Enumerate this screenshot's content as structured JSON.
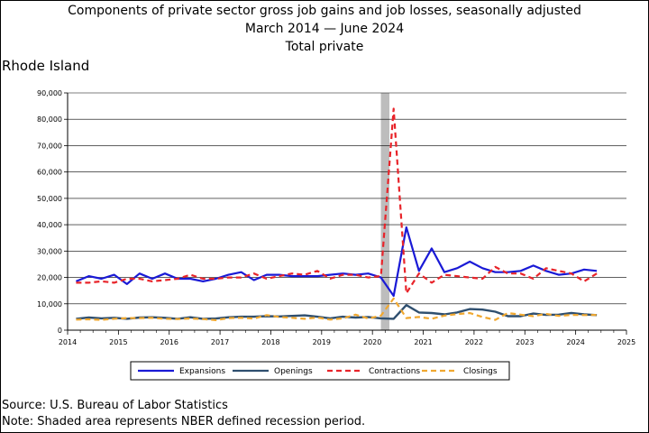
{
  "title_line1": "Components of private sector gross job gains and job losses, seasonally adjusted",
  "title_line2_start": "March 2014",
  "title_line2_end": "June 2024",
  "title_line3": "Total private",
  "region": "Rhode Island",
  "source": "Source: U.S. Bureau of Labor Statistics",
  "note": "Note: Shaded area represents NBER defined recession period.",
  "colors": {
    "expansions": "#1a1ad6",
    "openings": "#2f4f6f",
    "contractions": "#e8242a",
    "closings": "#f0a830",
    "recession": "#bdbdbd"
  },
  "chart_data": {
    "type": "line",
    "ylim": [
      0,
      90000
    ],
    "xlim": [
      2014,
      2025
    ],
    "yticks": [
      "0",
      "10,000",
      "20,000",
      "30,000",
      "40,000",
      "50,000",
      "60,000",
      "70,000",
      "80,000",
      "90,000"
    ],
    "xticks": [
      "2014",
      "2015",
      "2016",
      "2017",
      "2018",
      "2019",
      "2020",
      "2021",
      "2022",
      "2023",
      "2024",
      "2025"
    ],
    "grid": true,
    "legend_position": "bottom",
    "recession": {
      "start": "2020-03",
      "end": "2020-05"
    },
    "x": [
      "2014-03",
      "2014-06",
      "2014-09",
      "2014-12",
      "2015-03",
      "2015-06",
      "2015-09",
      "2015-12",
      "2016-03",
      "2016-06",
      "2016-09",
      "2016-12",
      "2017-03",
      "2017-06",
      "2017-09",
      "2017-12",
      "2018-03",
      "2018-06",
      "2018-09",
      "2018-12",
      "2019-03",
      "2019-06",
      "2019-09",
      "2019-12",
      "2020-03",
      "2020-06",
      "2020-09",
      "2020-12",
      "2021-03",
      "2021-06",
      "2021-09",
      "2021-12",
      "2022-03",
      "2022-06",
      "2022-09",
      "2022-12",
      "2023-03",
      "2023-06",
      "2023-09",
      "2023-12",
      "2024-03",
      "2024-06"
    ],
    "series": [
      {
        "name": "Expansions",
        "style": "solid",
        "values": [
          18500,
          20500,
          19500,
          21000,
          17500,
          21500,
          19500,
          21500,
          19500,
          19500,
          18500,
          19500,
          21000,
          22000,
          19000,
          21000,
          21000,
          20500,
          20500,
          20500,
          21000,
          21500,
          21000,
          21500,
          20000,
          13000,
          39000,
          22500,
          31000,
          22000,
          23500,
          26000,
          23500,
          22000,
          22000,
          22500,
          24500,
          22500,
          21000,
          21500,
          23000,
          22500
        ]
      },
      {
        "name": "Openings",
        "style": "solid",
        "values": [
          4300,
          4800,
          4500,
          4700,
          4300,
          4800,
          4900,
          4700,
          4300,
          4900,
          4300,
          4400,
          4900,
          5100,
          5100,
          5300,
          5200,
          5400,
          5600,
          5100,
          4500,
          5100,
          4800,
          5000,
          4500,
          4300,
          9500,
          6700,
          6500,
          6000,
          6700,
          8000,
          7800,
          7000,
          5300,
          5300,
          6300,
          5800,
          5900,
          6500,
          6000,
          5700
        ]
      },
      {
        "name": "Contractions",
        "style": "dashed",
        "values": [
          18000,
          18000,
          18500,
          18000,
          19500,
          19500,
          18500,
          19000,
          19500,
          21000,
          19500,
          19500,
          20000,
          20000,
          21500,
          19500,
          20500,
          21500,
          21000,
          22500,
          19500,
          21000,
          21000,
          20000,
          20500,
          84000,
          14000,
          21500,
          18000,
          21000,
          20500,
          20000,
          19500,
          24000,
          21500,
          21500,
          19500,
          23500,
          22500,
          21500,
          18500,
          21500
        ]
      },
      {
        "name": "Closings",
        "style": "dashed",
        "values": [
          4000,
          4100,
          3900,
          4300,
          4600,
          4600,
          4700,
          4300,
          4200,
          4400,
          4200,
          3800,
          4600,
          4700,
          4400,
          5700,
          5000,
          4700,
          4300,
          4800,
          4000,
          4500,
          5900,
          4400,
          5500,
          12000,
          4600,
          5000,
          4300,
          5500,
          6100,
          6500,
          5000,
          3900,
          6500,
          5900,
          5300,
          6200,
          5400,
          5800,
          5700,
          5800
        ]
      }
    ]
  }
}
